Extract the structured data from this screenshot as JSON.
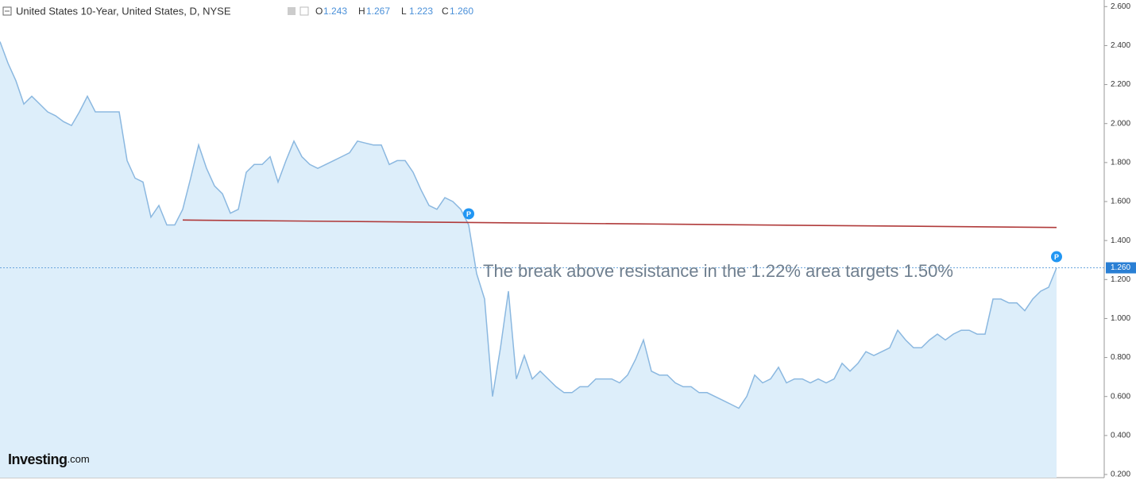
{
  "chart_data": {
    "type": "area",
    "title": "United States 10-Year, United States, D, NYSE",
    "ohlc": [
      {
        "key": "O",
        "value": 1.243
      },
      {
        "key": "H",
        "value": 1.267
      },
      {
        "key": "L",
        "value": 1.223
      },
      {
        "key": "C",
        "value": {
          "value": 1.26,
          "label": "1.260"
        }
      }
    ],
    "annotation": "The break above resistance in the 1.22% area targets 1.50%",
    "logo": "Investing",
    "logo_suffix": ".com",
    "line_color": "#8bb8e0",
    "fill_color": "#ddeefa",
    "values": [
      2.42,
      2.31,
      2.22,
      2.1,
      2.14,
      2.1,
      2.06,
      2.04,
      2.01,
      1.99,
      2.06,
      2.14,
      2.06,
      2.06,
      2.06,
      2.06,
      1.81,
      1.72,
      1.7,
      1.52,
      1.58,
      1.48,
      1.48,
      1.56,
      1.72,
      1.89,
      1.77,
      1.68,
      1.64,
      1.54,
      1.56,
      1.75,
      1.79,
      1.79,
      1.83,
      1.7,
      1.81,
      1.91,
      1.83,
      1.79,
      1.77,
      1.79,
      1.81,
      1.83,
      1.85,
      1.91,
      1.9,
      1.89,
      1.89,
      1.79,
      1.81,
      1.81,
      1.75,
      1.66,
      1.58,
      1.56,
      1.62,
      1.6,
      1.56,
      1.48,
      1.23,
      1.1,
      0.6,
      0.85,
      1.14,
      0.69,
      0.81,
      0.69,
      0.73,
      0.69,
      0.65,
      0.62,
      0.62,
      0.65,
      0.65,
      0.69,
      0.69,
      0.69,
      0.67,
      0.71,
      0.79,
      0.89,
      0.73,
      0.71,
      0.71,
      0.67,
      0.65,
      0.65,
      0.62,
      0.62,
      0.6,
      0.58,
      0.56,
      0.54,
      0.6,
      0.71,
      0.67,
      0.69,
      0.75,
      0.67,
      0.69,
      0.69,
      0.67,
      0.69,
      0.67,
      0.69,
      0.77,
      0.73,
      0.77,
      0.83,
      0.81,
      0.83,
      0.85,
      0.94,
      0.89,
      0.85,
      0.85,
      0.89,
      0.92,
      0.89,
      0.92,
      0.94,
      0.94,
      0.92,
      0.92,
      1.1,
      1.1,
      1.08,
      1.08,
      1.04,
      1.1,
      1.14,
      1.16,
      1.26
    ],
    "resistance_line": {
      "color": "#b03a3a",
      "start_index": 23,
      "values": [
        1.505,
        1.467
      ]
    },
    "markers": [
      {
        "label": "P",
        "index": 59
      },
      {
        "label": "P",
        "index": 133
      }
    ],
    "marker_color": "#2196f3",
    "ylim": [
      0.2,
      2.65
    ],
    "yticks": [
      {
        "value": 0.2,
        "label": "0.200"
      },
      {
        "value": 0.4,
        "label": "0.400"
      },
      {
        "value": 0.6,
        "label": "0.600"
      },
      {
        "value": 0.8,
        "label": "0.800"
      },
      {
        "value": 1.0,
        "label": "1.000"
      },
      {
        "value": 1.2,
        "label": "1.200"
      },
      {
        "value": 1.4,
        "label": "1.400"
      },
      {
        "value": 1.6,
        "label": "1.600"
      },
      {
        "value": 1.8,
        "label": "1.800"
      },
      {
        "value": 2.0,
        "label": "2.000"
      },
      {
        "value": 2.2,
        "label": "2.200"
      },
      {
        "value": 2.4,
        "label": "2.400"
      },
      {
        "value": 2.6,
        "label": "2.600"
      }
    ],
    "grid": false
  }
}
